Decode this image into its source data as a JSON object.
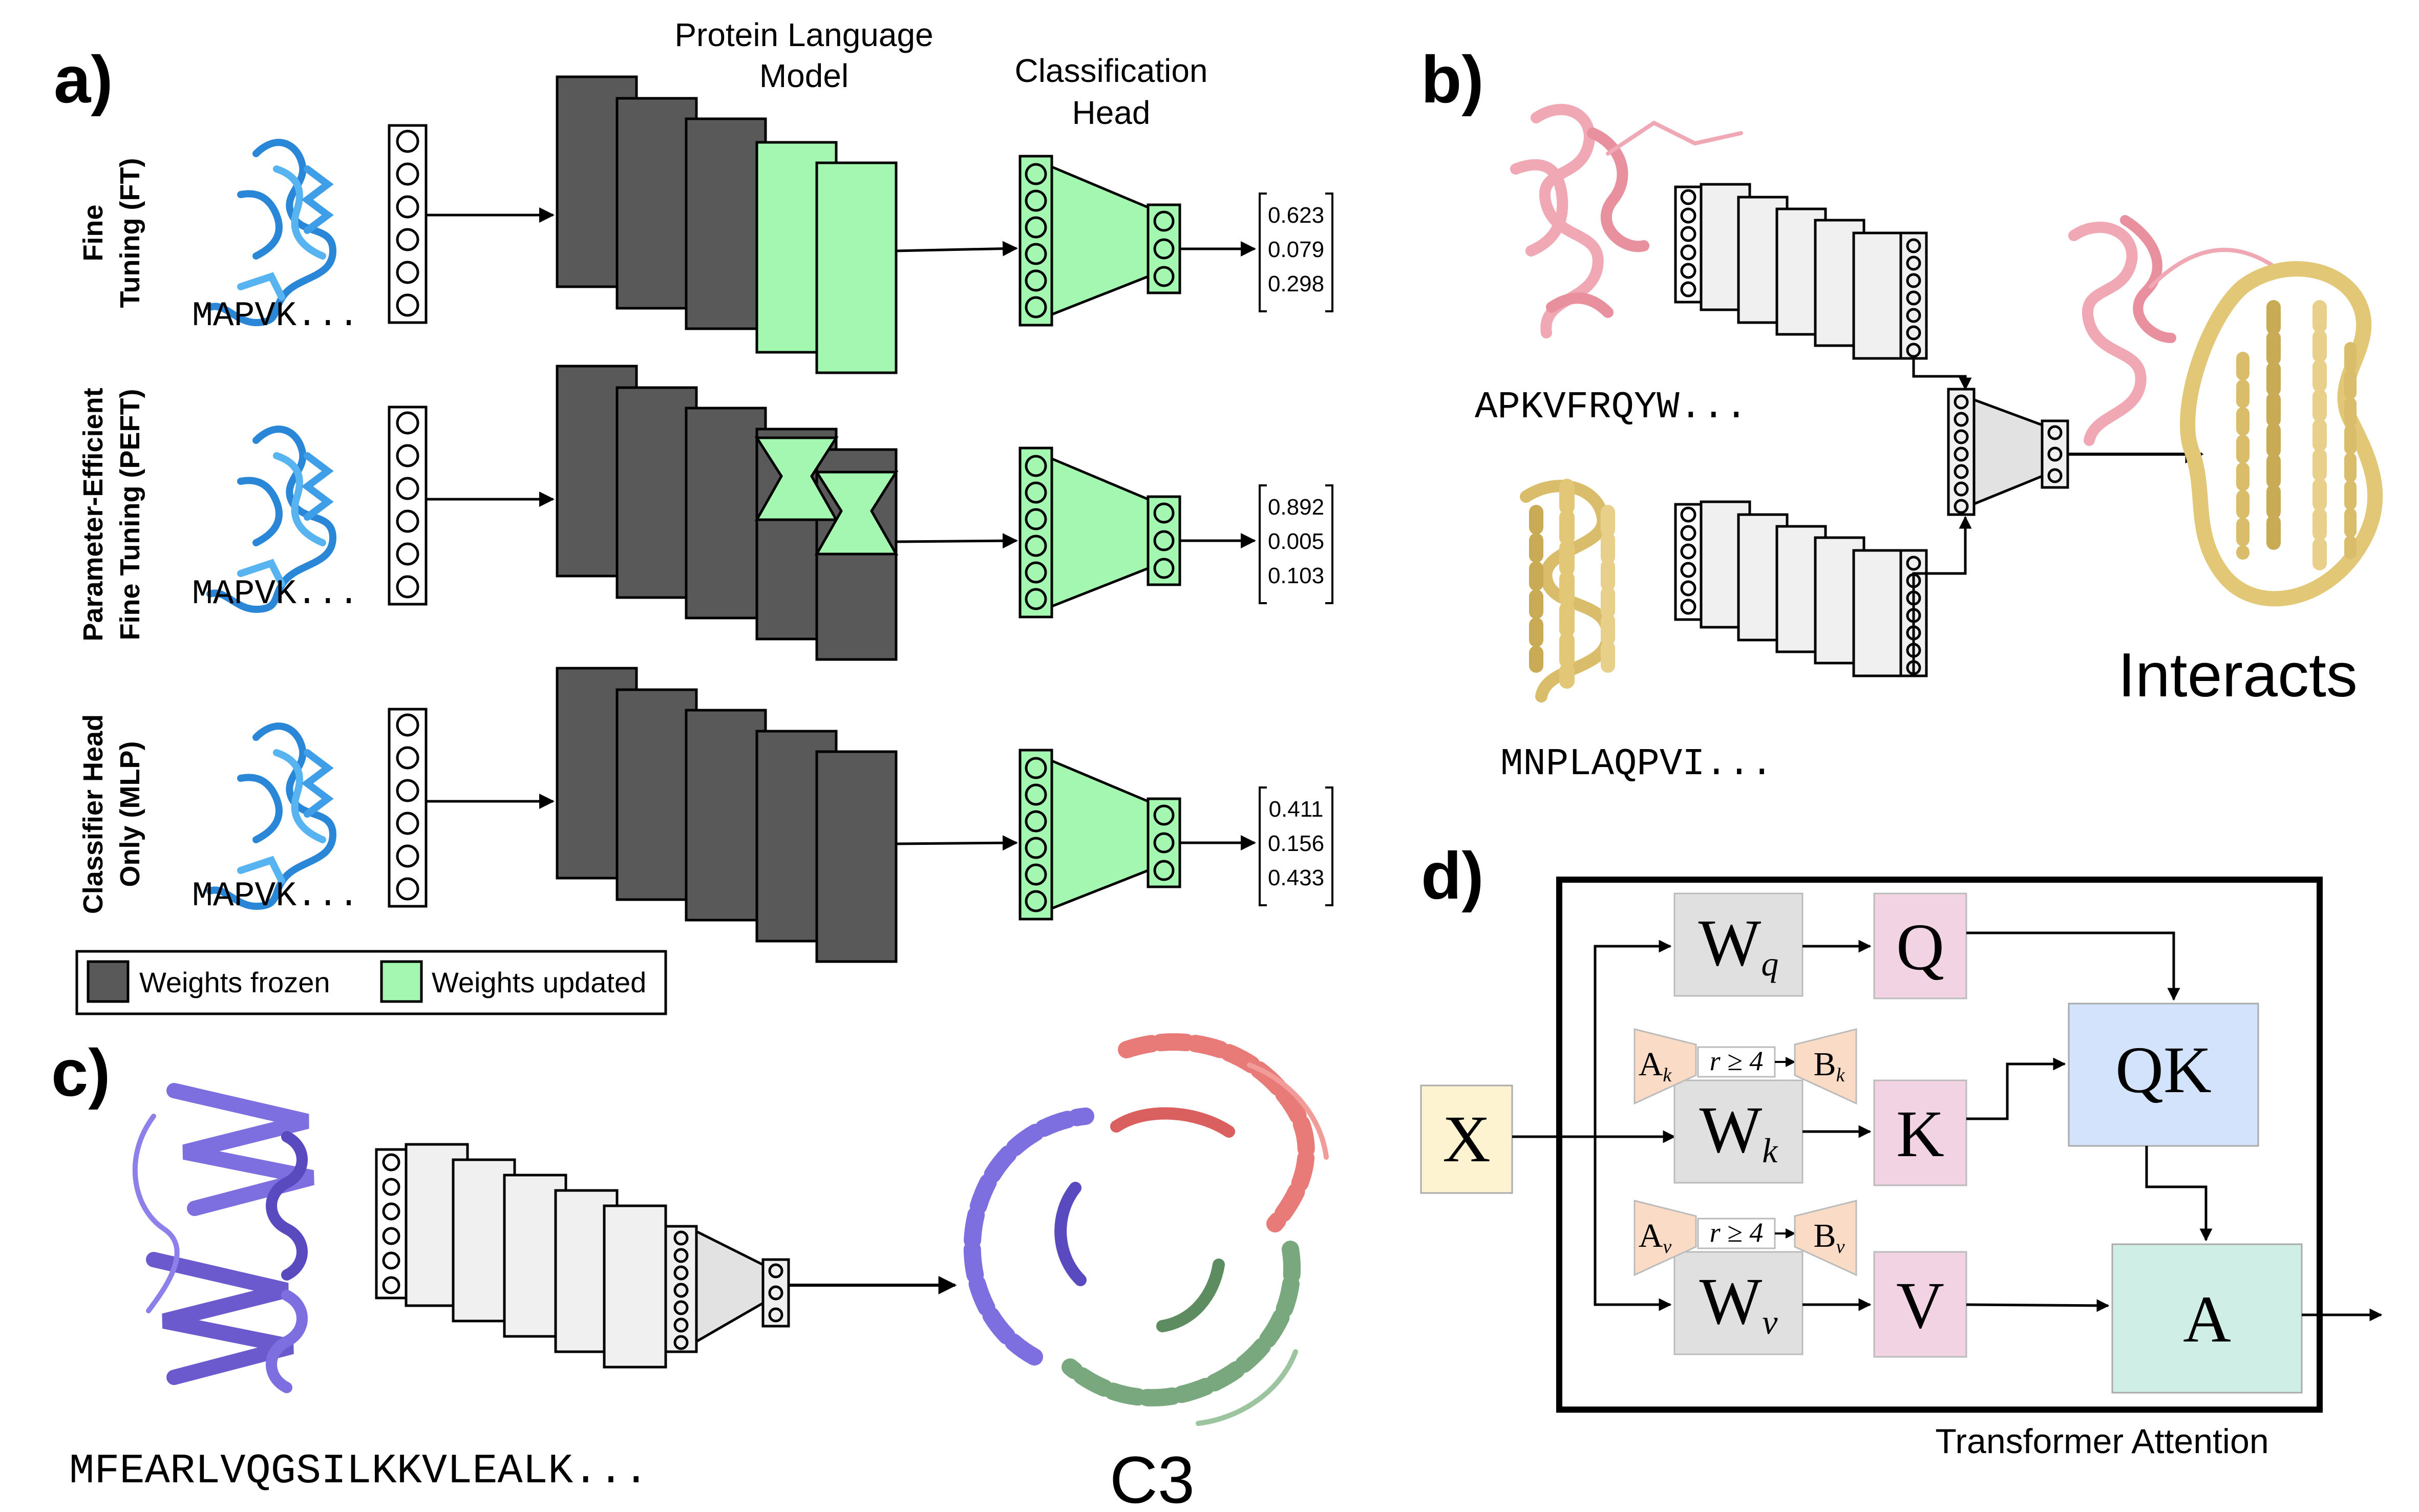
{
  "panels": {
    "a": {
      "label": "a)",
      "plm_title": [
        "Protein Language",
        "Model"
      ],
      "head_title": [
        "Classification",
        "Head"
      ],
      "rows": [
        {
          "name": [
            "Fine",
            "Tuning (FT)"
          ],
          "seq": "MAPVK...",
          "outputs": [
            "0.623",
            "0.079",
            "0.298"
          ]
        },
        {
          "name": [
            "Parameter-Efficient",
            "Fine Tuning (PEFT)"
          ],
          "seq": "MAPVK...",
          "outputs": [
            "0.892",
            "0.005",
            "0.103"
          ]
        },
        {
          "name": [
            "Classifier Head",
            "Only (MLP)"
          ],
          "seq": "MAPVK...",
          "outputs": [
            "0.411",
            "0.156",
            "0.433"
          ]
        }
      ],
      "legend": {
        "frozen": "Weights frozen",
        "updated": "Weights updated"
      }
    },
    "b": {
      "label": "b)",
      "seq1": "APKVFRQYW...",
      "seq2": "MNPLAQPVI...",
      "result": "Interacts"
    },
    "c": {
      "label": "c)",
      "seq": "MFEARLVQGSILKKVLEALK...",
      "result": "C3"
    },
    "d": {
      "label": "d)",
      "caption": "Transformer Attention",
      "x": "X",
      "wq": "W",
      "wq_sub": "q",
      "wk": "W",
      "wk_sub": "k",
      "wv": "W",
      "wv_sub": "v",
      "q": "Q",
      "k": "K",
      "v": "V",
      "qk": "QK",
      "a": "A",
      "ak": "A",
      "ak_sub": "k",
      "bk": "B",
      "bk_sub": "k",
      "av": "A",
      "av_sub": "v",
      "bv": "B",
      "bv_sub": "v",
      "rank_k": "r ≥ 4",
      "rank_v": "r ≥ 4"
    }
  },
  "colors": {
    "frozen": "#595959",
    "updated": "#a3f7b1",
    "head_green": "#a3f7b1",
    "light_layer": "#f0f0f0",
    "protein_blue": "#4aa3e8",
    "protein_pink": "#f0a8b4",
    "protein_gold": "#e2c776",
    "protein_purple": "#7e6fe0",
    "protein_red": "#e87a78",
    "protein_green": "#7aa87e",
    "x_box": "#fdf3d0",
    "w_box": "#e0e0e0",
    "qkv_box": "#f2d3e3",
    "qk_box": "#d3e3fc",
    "a_box": "#cfeee6",
    "lora": "#fadcc6"
  }
}
